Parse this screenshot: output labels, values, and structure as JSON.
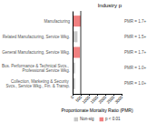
{
  "chart_data": {
    "type": "bar",
    "orientation": "horizontal",
    "title": "Industry p",
    "xlabel": "Proportionate Mortality Ratio (PMR)",
    "categories": [
      "Manufacturing",
      "Related Manufacturing, Service Wkg.",
      "General Manufacturing, Service Wkg.",
      "Bus. Performance & Technical Svcs., Professional Service Wkg.",
      "Collection, Marketing & Security Svcs., Service Wkg., Fin. & Transp."
    ],
    "series": [
      {
        "name": "Non-sig",
        "color": "#c8c8c8",
        "values": [
          null,
          300,
          null,
          150,
          150
        ]
      },
      {
        "name": "p < 0.01",
        "color": "#f08080",
        "values": [
          500,
          null,
          450,
          null,
          null
        ]
      }
    ],
    "annotations": [
      "PMR = 1.7+",
      "PMR = 1.5+",
      "PMR = 1.7+",
      "PMR = 1.0+",
      "PMR = 1.0+"
    ],
    "reference_line": 500,
    "xlim": [
      0,
      3000
    ],
    "xticks": [
      0,
      500,
      1000,
      1500,
      2000,
      2500,
      3000
    ],
    "grid": false,
    "legend": "bottom"
  }
}
